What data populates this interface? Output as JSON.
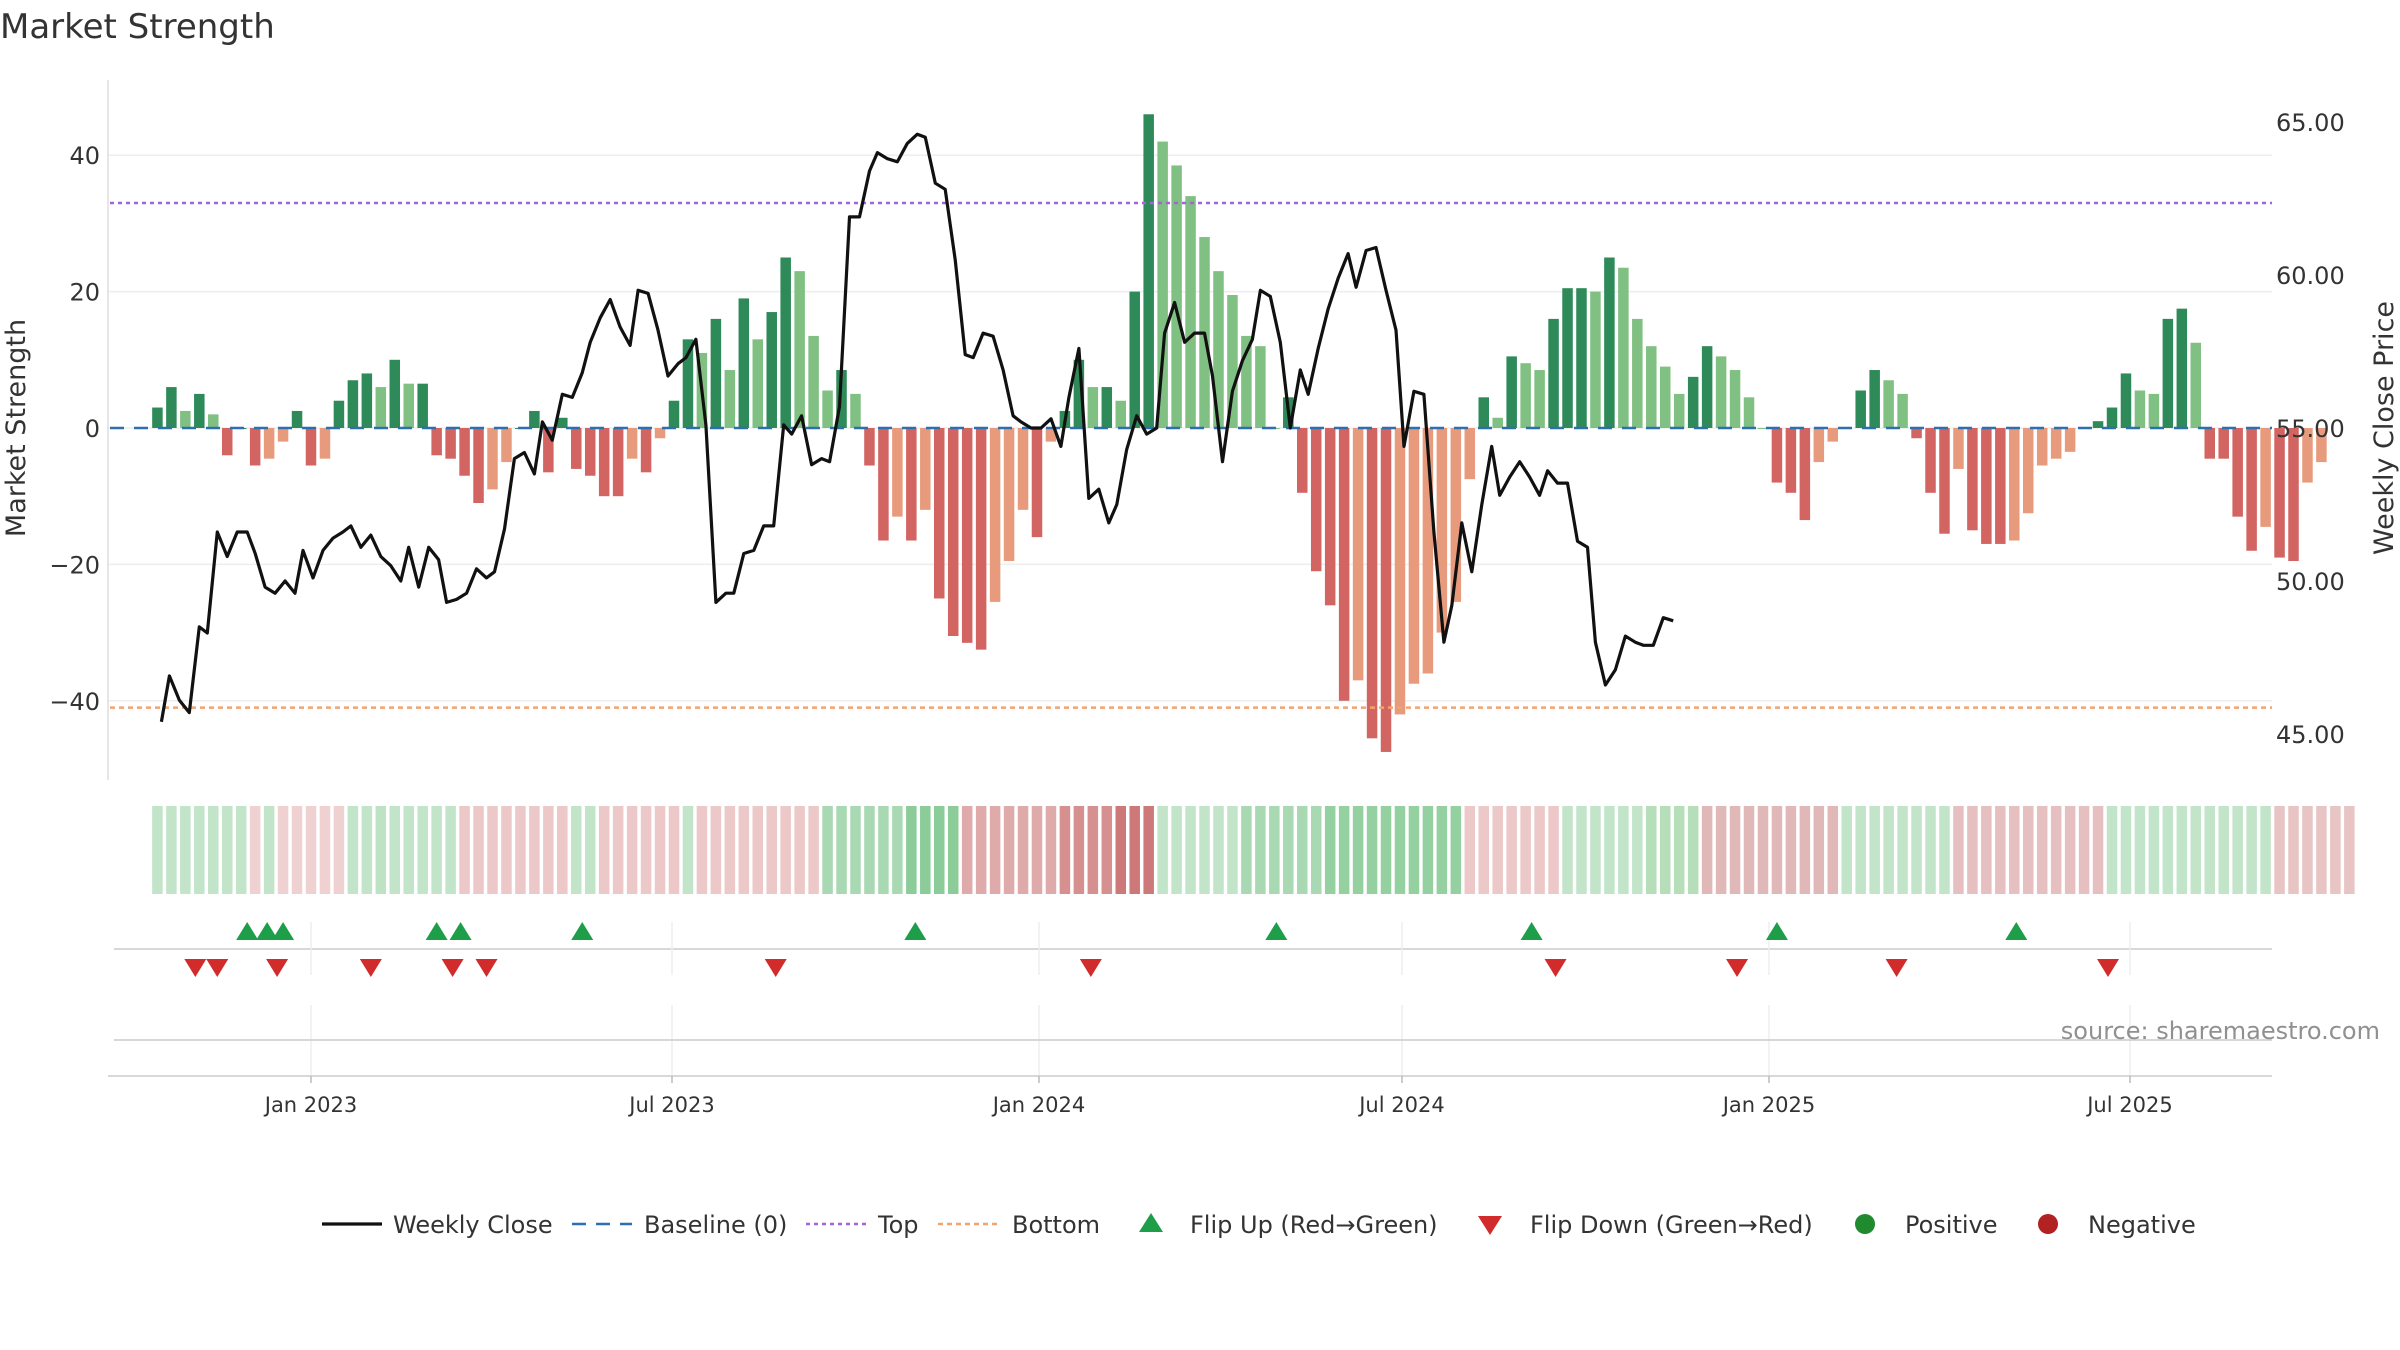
{
  "chart_data": {
    "type": "bar",
    "title": "Market Strength",
    "ylabel": "Market Strength",
    "y2label": "Weekly Close Price",
    "ylim": [
      -51,
      52
    ],
    "y2lim": [
      44.2,
      66.4
    ],
    "yticks": [
      40,
      20,
      0,
      -20,
      -40
    ],
    "ytick_labels": [
      "40",
      "20",
      "0",
      "−20",
      "−40"
    ],
    "y2ticks": [
      65,
      60,
      55,
      50,
      45
    ],
    "y2tick_labels": [
      "65.00",
      "60.00",
      "55.00",
      "50.00",
      "45.00"
    ],
    "x_range_days": [
      -79,
      1010
    ],
    "x_ticks_days": [
      0,
      181,
      365,
      547,
      731,
      912
    ],
    "x_tick_labels": [
      "Jan 2023",
      "Jul 2023",
      "Jan 2024",
      "Jul 2024",
      "Jan 2025",
      "Jul 2025"
    ],
    "x_axis_origin": "Jan 2023",
    "bar_interval_days": 7,
    "first_bar_day": -77,
    "top_level": 33,
    "bottom_level": -41,
    "baseline": 0,
    "strength_values": [
      3,
      6,
      2.5,
      5,
      2,
      -4,
      0,
      -5.5,
      -4.5,
      -2,
      2.5,
      -5.5,
      -4.5,
      4,
      7,
      8,
      6,
      10,
      6.5,
      6.5,
      -4,
      -4.5,
      -7,
      -11,
      -9,
      -5,
      0,
      2.5,
      -6.5,
      1.5,
      -6,
      -7,
      -10,
      -10,
      -4.5,
      -6.5,
      -1.5,
      4,
      13,
      11,
      16,
      8.5,
      19,
      13,
      17,
      25,
      23,
      13.5,
      5.5,
      8.5,
      5,
      -5.5,
      -16.5,
      -13,
      -16.5,
      -12,
      -25,
      -30.5,
      -31.5,
      -32.5,
      -25.5,
      -19.5,
      -12,
      -16,
      -2,
      2.5,
      10,
      6,
      6,
      4,
      20,
      46,
      42,
      38.5,
      34,
      28,
      23,
      19.5,
      13.5,
      12,
      0,
      4.5,
      -9.5,
      -21,
      -26,
      -40,
      -37,
      -45.5,
      -47.5,
      -42,
      -37.5,
      -36,
      -30,
      -25.5,
      -7.5,
      4.5,
      1.5,
      10.5,
      9.5,
      8.5,
      16,
      20.5,
      20.5,
      20,
      25,
      23.5,
      16,
      12,
      9,
      5,
      7.5,
      12,
      10.5,
      8.5,
      4.5,
      0,
      -8,
      -9.5,
      -13.5,
      -5,
      -2,
      0,
      5.5,
      8.5,
      7,
      5,
      -1.5,
      -9.5,
      -15.5,
      -6,
      -15,
      -17,
      -17,
      -16.5,
      -12.5,
      -5.5,
      -4.5,
      -3.5,
      0,
      1,
      3,
      8,
      5.5,
      5,
      16,
      17.5,
      12.5,
      -4.5,
      -4.5,
      -13,
      -18,
      -14.5,
      -19,
      -19.5,
      -8,
      -5
    ],
    "close_points": [
      [
        -75,
        45.4
      ],
      [
        -71,
        46.9
      ],
      [
        -66,
        46.1
      ],
      [
        -61,
        45.7
      ],
      [
        -56,
        48.5
      ],
      [
        -52,
        48.3
      ],
      [
        -47,
        51.6
      ],
      [
        -42,
        50.8
      ],
      [
        -37,
        51.6
      ],
      [
        -32,
        51.6
      ],
      [
        -28,
        50.9
      ],
      [
        -23,
        49.8
      ],
      [
        -18,
        49.6
      ],
      [
        -13,
        50.0
      ],
      [
        -8,
        49.6
      ],
      [
        -4,
        51.0
      ],
      [
        1,
        50.1
      ],
      [
        6,
        51.0
      ],
      [
        11,
        51.4
      ],
      [
        16,
        51.6
      ],
      [
        20,
        51.8
      ],
      [
        25,
        51.1
      ],
      [
        30,
        51.5
      ],
      [
        35,
        50.8
      ],
      [
        40,
        50.5
      ],
      [
        45,
        50.0
      ],
      [
        49,
        51.1
      ],
      [
        54,
        49.8
      ],
      [
        59,
        51.1
      ],
      [
        64,
        50.7
      ],
      [
        68,
        49.3
      ],
      [
        73,
        49.4
      ],
      [
        78,
        49.6
      ],
      [
        83,
        50.4
      ],
      [
        88,
        50.1
      ],
      [
        92,
        50.3
      ],
      [
        97,
        51.7
      ],
      [
        102,
        54.0
      ],
      [
        107,
        54.2
      ],
      [
        112,
        53.5
      ],
      [
        116,
        55.2
      ],
      [
        121,
        54.6
      ],
      [
        126,
        56.1
      ],
      [
        131,
        56.0
      ],
      [
        136,
        56.8
      ],
      [
        140,
        57.8
      ],
      [
        145,
        58.6
      ],
      [
        150,
        59.2
      ],
      [
        155,
        58.3
      ],
      [
        160,
        57.7
      ],
      [
        164,
        59.5
      ],
      [
        169,
        59.4
      ],
      [
        174,
        58.2
      ],
      [
        179,
        56.7
      ],
      [
        184,
        57.1
      ],
      [
        188,
        57.3
      ],
      [
        193,
        57.9
      ],
      [
        198,
        55.1
      ],
      [
        203,
        49.3
      ],
      [
        208,
        49.6
      ],
      [
        212,
        49.6
      ],
      [
        217,
        50.9
      ],
      [
        222,
        51.0
      ],
      [
        227,
        51.8
      ],
      [
        232,
        51.8
      ],
      [
        237,
        55.1
      ],
      [
        241,
        54.8
      ],
      [
        246,
        55.4
      ],
      [
        251,
        53.8
      ],
      [
        256,
        54.0
      ],
      [
        260,
        53.9
      ],
      [
        265,
        55.7
      ],
      [
        270,
        61.9
      ],
      [
        275,
        61.9
      ],
      [
        280,
        63.4
      ],
      [
        284,
        64.0
      ],
      [
        289,
        63.8
      ],
      [
        294,
        63.7
      ],
      [
        299,
        64.3
      ],
      [
        304,
        64.6
      ],
      [
        308,
        64.5
      ],
      [
        313,
        63.0
      ],
      [
        318,
        62.8
      ],
      [
        323,
        60.5
      ],
      [
        328,
        57.4
      ],
      [
        332,
        57.3
      ],
      [
        337,
        58.1
      ],
      [
        342,
        58.0
      ],
      [
        347,
        56.9
      ],
      [
        352,
        55.4
      ],
      [
        356,
        55.2
      ],
      [
        361,
        55.0
      ],
      [
        366,
        55.0
      ],
      [
        371,
        55.3
      ],
      [
        376,
        54.4
      ],
      [
        380,
        56.0
      ],
      [
        385,
        57.6
      ],
      [
        390,
        52.7
      ],
      [
        395,
        53.0
      ],
      [
        400,
        51.9
      ],
      [
        404,
        52.5
      ],
      [
        409,
        54.3
      ],
      [
        414,
        55.4
      ],
      [
        419,
        54.8
      ],
      [
        424,
        55.0
      ],
      [
        428,
        58.1
      ],
      [
        433,
        59.1
      ],
      [
        438,
        57.8
      ],
      [
        443,
        58.1
      ],
      [
        448,
        58.1
      ],
      [
        452,
        56.7
      ],
      [
        457,
        53.9
      ],
      [
        462,
        56.2
      ],
      [
        467,
        57.2
      ],
      [
        472,
        57.9
      ],
      [
        476,
        59.5
      ],
      [
        481,
        59.3
      ],
      [
        486,
        57.8
      ],
      [
        491,
        55.0
      ],
      [
        496,
        56.9
      ],
      [
        500,
        56.1
      ],
      [
        505,
        57.6
      ],
      [
        510,
        58.9
      ],
      [
        515,
        59.9
      ],
      [
        520,
        60.7
      ],
      [
        524,
        59.6
      ],
      [
        529,
        60.8
      ],
      [
        534,
        60.9
      ],
      [
        539,
        59.5
      ],
      [
        544,
        58.2
      ],
      [
        548,
        54.4
      ],
      [
        553,
        56.2
      ],
      [
        558,
        56.1
      ],
      [
        563,
        51.6
      ],
      [
        568,
        48.0
      ],
      [
        572,
        49.2
      ],
      [
        577,
        51.9
      ],
      [
        582,
        50.3
      ],
      [
        587,
        52.5
      ],
      [
        592,
        54.4
      ],
      [
        596,
        52.8
      ],
      [
        601,
        53.4
      ],
      [
        606,
        53.9
      ],
      [
        611,
        53.4
      ],
      [
        616,
        52.8
      ],
      [
        620,
        53.6
      ],
      [
        625,
        53.2
      ],
      [
        630,
        53.2
      ],
      [
        635,
        51.3
      ],
      [
        640,
        51.1
      ],
      [
        644,
        48.0
      ],
      [
        649,
        46.6
      ],
      [
        654,
        47.1
      ],
      [
        659,
        48.2
      ],
      [
        664,
        48.0
      ],
      [
        668,
        47.9
      ],
      [
        673,
        47.9
      ],
      [
        678,
        48.8
      ],
      [
        683,
        48.7
      ]
    ],
    "regime_band": [
      {
        "start": -77,
        "weeks": 7,
        "color": "#c2e4c9"
      },
      {
        "start": -28,
        "weeks": 1,
        "color": "#f0d1d1"
      },
      {
        "start": -21,
        "weeks": 1,
        "color": "#c2e4c9"
      },
      {
        "start": -14,
        "weeks": 5,
        "color": "#f0d1d1"
      },
      {
        "start": 21,
        "weeks": 2,
        "color": "#c2e4c9"
      },
      {
        "start": 35,
        "weeks": 1,
        "color": "#bde3c4"
      },
      {
        "start": 42,
        "weeks": 5,
        "color": "#c2e4c9"
      },
      {
        "start": 77,
        "weeks": 8,
        "color": "#ecc8c8"
      },
      {
        "start": 133,
        "weeks": 2,
        "color": "#c2e4c9"
      },
      {
        "start": 147,
        "weeks": 6,
        "color": "#ecc8c8"
      },
      {
        "start": 189,
        "weeks": 1,
        "color": "#c2e4c9"
      },
      {
        "start": 196,
        "weeks": 9,
        "color": "#ecc8c8"
      },
      {
        "start": 259,
        "weeks": 6,
        "color": "#a9d9b2"
      },
      {
        "start": 301,
        "weeks": 4,
        "color": "#8bcc99"
      },
      {
        "start": 329,
        "weeks": 7,
        "color": "#dfaaaa"
      },
      {
        "start": 378,
        "weeks": 4,
        "color": "#d69090"
      },
      {
        "start": 406,
        "weeks": 3,
        "color": "#cd7979"
      },
      {
        "start": 427,
        "weeks": 6,
        "color": "#c2e4c9"
      },
      {
        "start": 469,
        "weeks": 6,
        "color": "#a9d9b2"
      },
      {
        "start": 511,
        "weeks": 10,
        "color": "#94d0a0"
      },
      {
        "start": 581,
        "weeks": 7,
        "color": "#ecc8c8"
      },
      {
        "start": 630,
        "weeks": 6,
        "color": "#c2e4c9"
      },
      {
        "start": 672,
        "weeks": 4,
        "color": "#b5deb9"
      },
      {
        "start": 700,
        "weeks": 10,
        "color": "#e1b8b8"
      },
      {
        "start": 770,
        "weeks": 8,
        "color": "#c2e4c9"
      },
      {
        "start": 826,
        "weeks": 11,
        "color": "#e6c0c0"
      },
      {
        "start": 903,
        "weeks": 12,
        "color": "#c2e4c9"
      },
      {
        "start": 987,
        "weeks": 6,
        "color": "#e8c4c4"
      }
    ],
    "flip_up_days": [
      -32,
      -22,
      -14,
      63,
      75,
      136,
      303,
      484,
      612,
      735,
      855
    ],
    "flip_down_days": [
      -58,
      -47,
      -17,
      30,
      71,
      88,
      233,
      391,
      624,
      715,
      795,
      901
    ],
    "legend": [
      "Weekly Close",
      "Baseline (0)",
      "Top",
      "Bottom",
      "Flip Up (Red→Green)",
      "Flip Down (Green→Red)",
      "Positive",
      "Negative"
    ],
    "source": "source: sharemaestro.com"
  },
  "colors": {
    "pos_strong": "#2e8a58",
    "pos_light": "#80c082",
    "neg_strong": "#d26462",
    "neg_light": "#e89b7c",
    "close_line": "#111111",
    "baseline": "#2e6fb0",
    "top": "#a463d6",
    "bottom": "#f2a36e",
    "flip_up": "#1f9e4a",
    "flip_down": "#d12b2b",
    "positive_dot": "#1f8a2e",
    "negative_dot": "#b22222"
  }
}
